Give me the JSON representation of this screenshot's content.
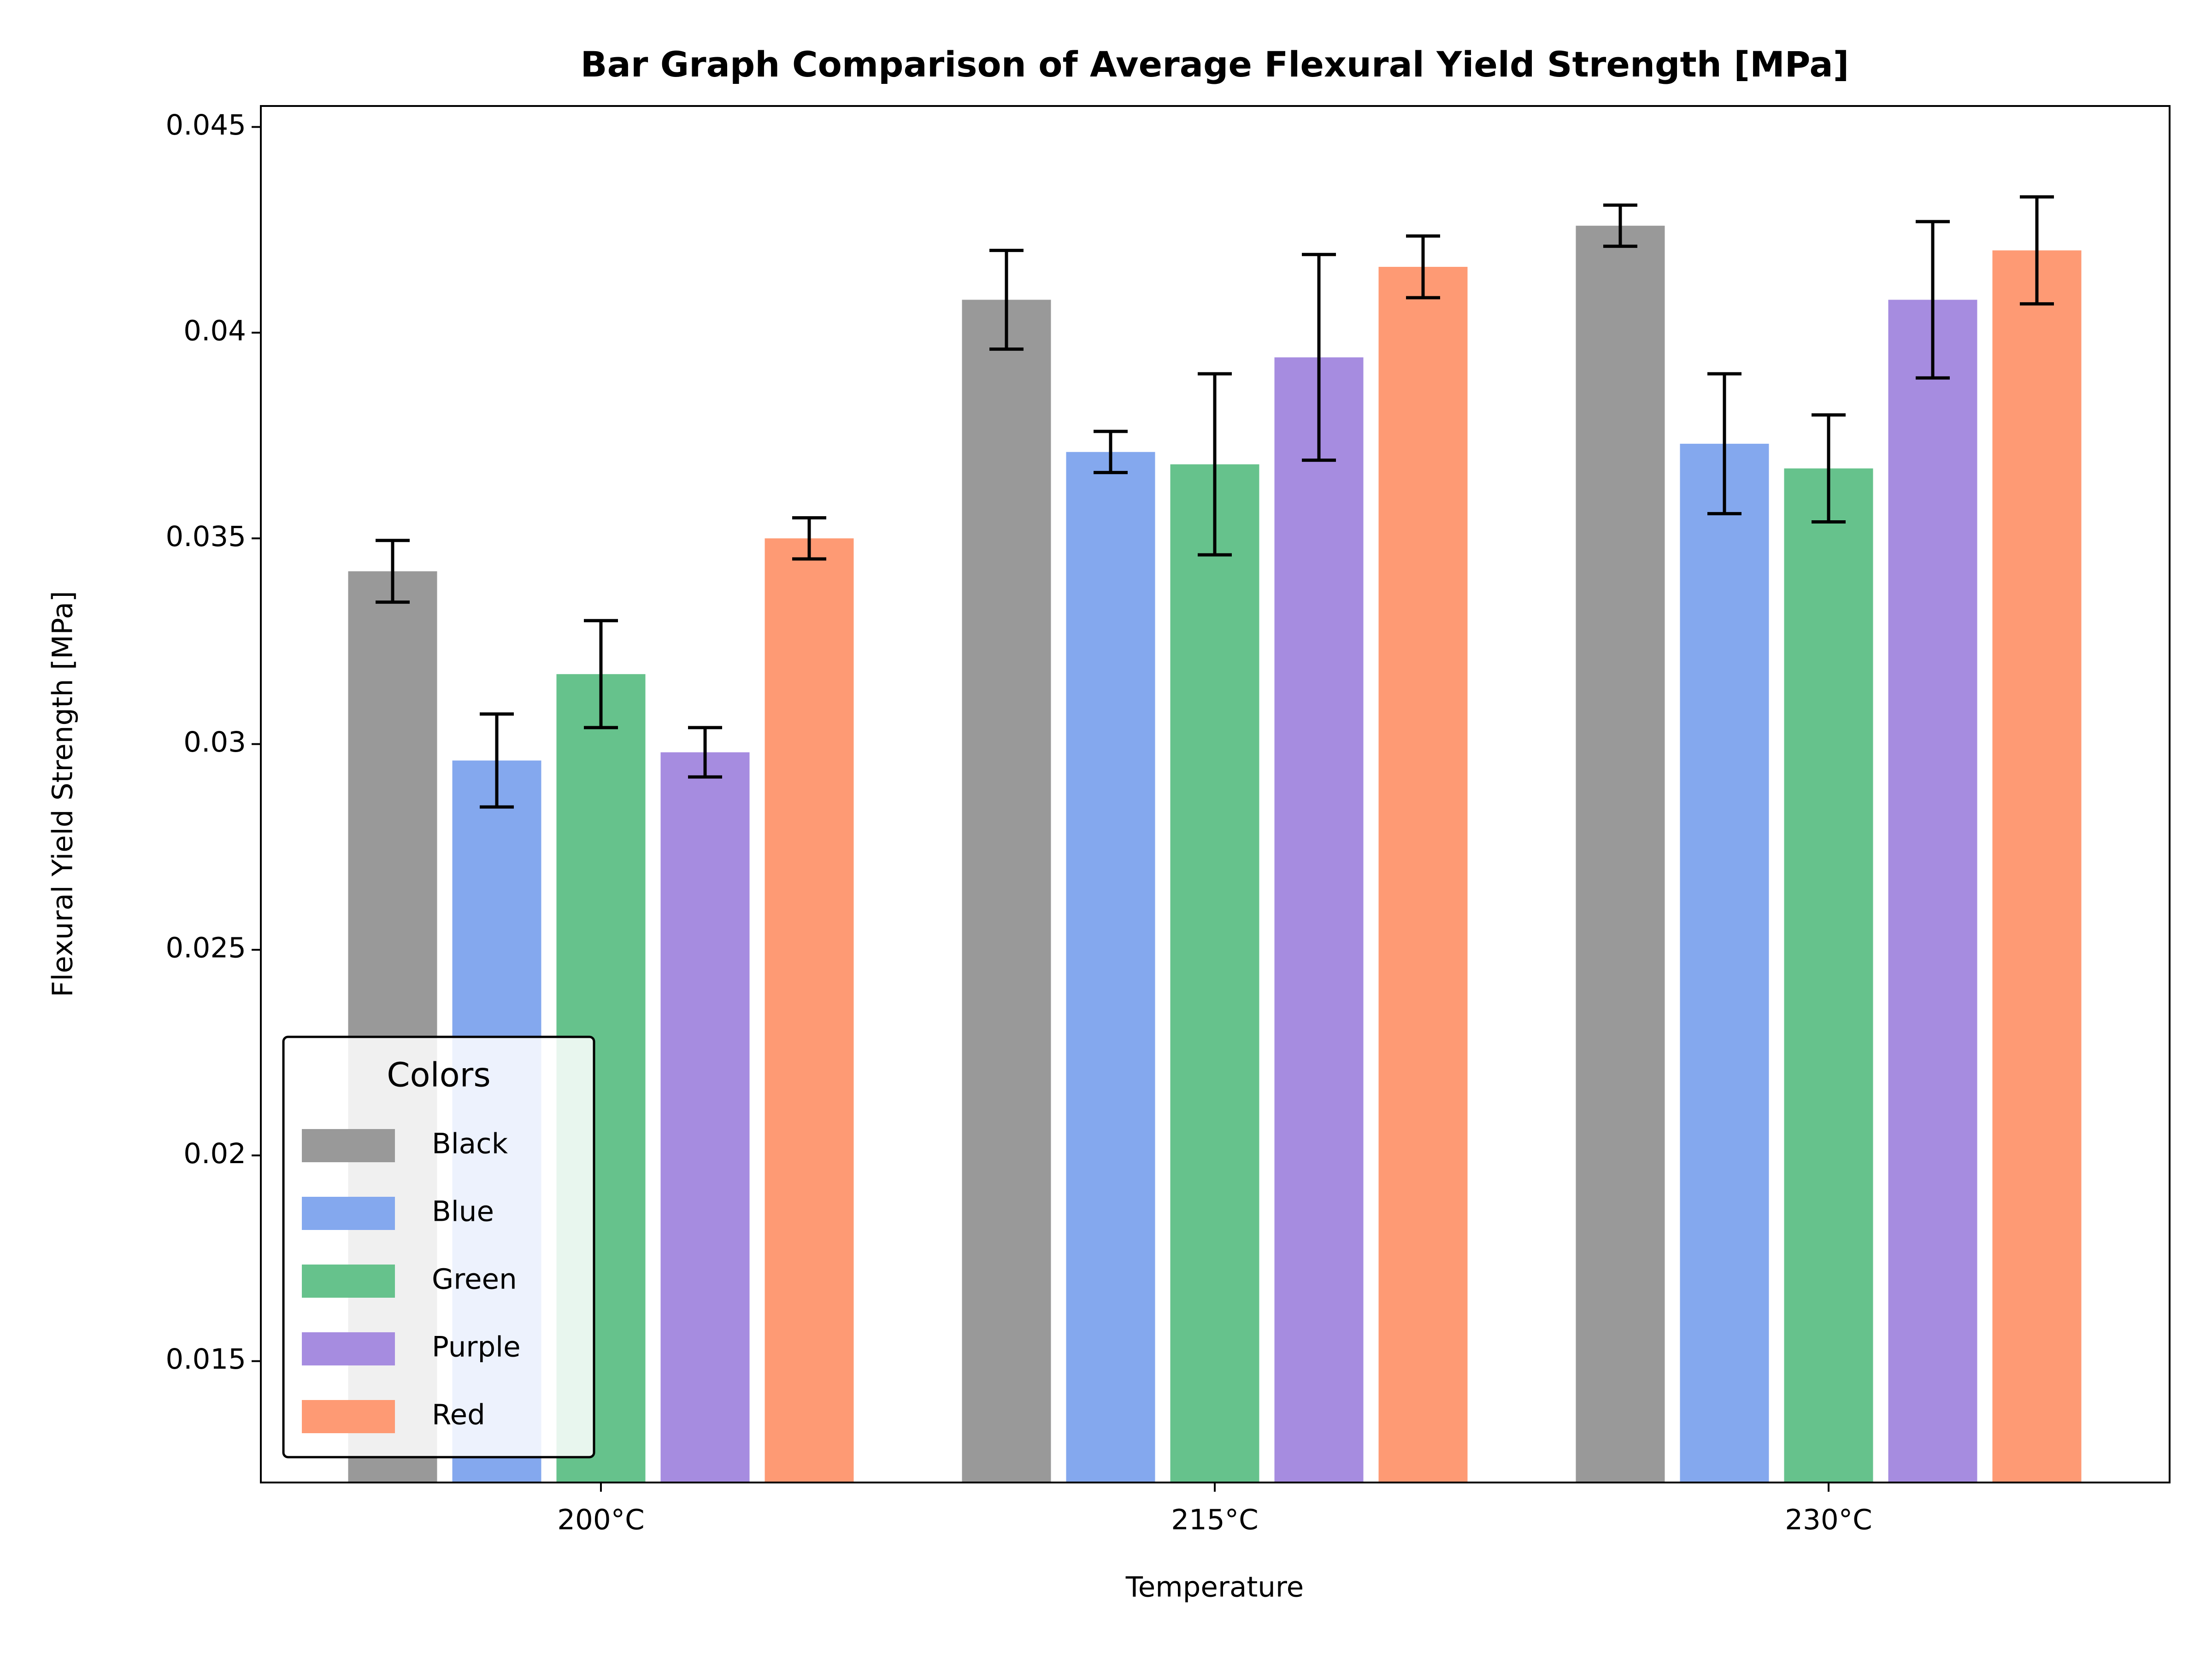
{
  "chart_data": {
    "type": "bar",
    "title": "Bar Graph Comparison of Average Flexural Yield Strength [MPa]",
    "x_label": "Temperature",
    "y_label": "Flexural Yield Strength [MPa]",
    "categories": [
      "200°C",
      "215°C",
      "230°C"
    ],
    "series": [
      {
        "name": "Black",
        "color": "#999999",
        "values": [
          0.0342,
          0.0408,
          0.0426
        ],
        "errors": [
          0.00075,
          0.0012,
          0.0005
        ]
      },
      {
        "name": "Blue",
        "color": "#84a8ee",
        "values": [
          0.0296,
          0.0371,
          0.0373
        ],
        "errors": [
          0.00113,
          0.0005,
          0.0017
        ]
      },
      {
        "name": "Green",
        "color": "#66c28c",
        "values": [
          0.0317,
          0.0368,
          0.0367
        ],
        "errors": [
          0.0013,
          0.0022,
          0.0013
        ]
      },
      {
        "name": "Purple",
        "color": "#a68ce0",
        "values": [
          0.0298,
          0.0394,
          0.0408
        ],
        "errors": [
          0.0006,
          0.0025,
          0.0019
        ]
      },
      {
        "name": "Red",
        "color": "#fe9a74",
        "values": [
          0.035,
          0.0416,
          0.042
        ],
        "errors": [
          0.0005,
          0.00075,
          0.0013
        ]
      }
    ],
    "ylim": [
      0.01205,
      0.04551
    ],
    "yticks": [
      0.015,
      0.02,
      0.025,
      0.03,
      0.035,
      0.04,
      0.045
    ],
    "legend_title": "Colors",
    "legend_position": "lower left",
    "error_color": "#000000"
  }
}
